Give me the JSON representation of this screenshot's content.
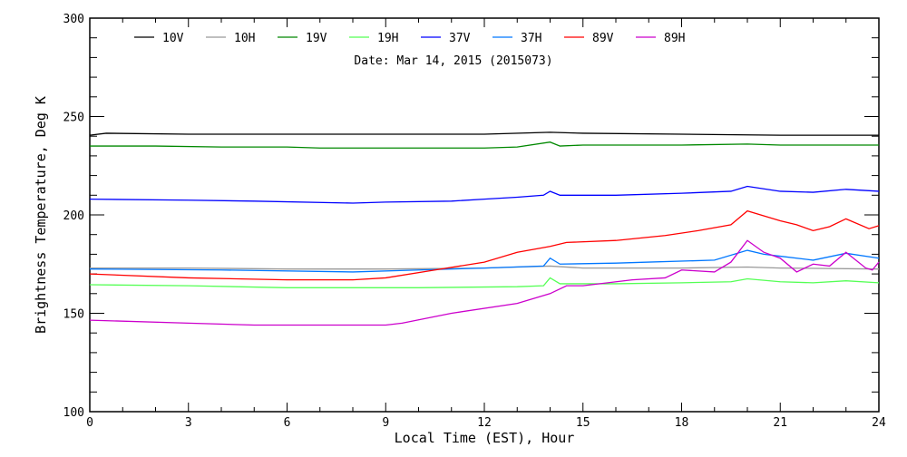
{
  "chart_data": {
    "type": "line",
    "title": "Date: Mar 14, 2015 (2015073)",
    "xlabel": "Local Time (EST), Hour",
    "ylabel": "Brightness Temperature, Deg K",
    "xlim": [
      0,
      24
    ],
    "ylim": [
      100,
      300
    ],
    "xticks": [
      0,
      3,
      6,
      9,
      12,
      15,
      18,
      21,
      24
    ],
    "yticks": [
      100,
      150,
      200,
      250,
      300
    ],
    "grid": false,
    "legend_placement": "top",
    "series": [
      {
        "name": "10V",
        "color": "#000000",
        "points": [
          [
            0,
            240.5
          ],
          [
            0.5,
            241.5
          ],
          [
            3,
            241
          ],
          [
            6,
            241
          ],
          [
            9,
            241
          ],
          [
            12,
            241
          ],
          [
            14,
            242
          ],
          [
            15,
            241.5
          ],
          [
            18,
            241
          ],
          [
            21,
            240.5
          ],
          [
            24,
            240.5
          ]
        ]
      },
      {
        "name": "10H",
        "color": "#999999",
        "points": [
          [
            0,
            173
          ],
          [
            3,
            173
          ],
          [
            6,
            172.5
          ],
          [
            9,
            172.5
          ],
          [
            12,
            173
          ],
          [
            14,
            174
          ],
          [
            15,
            173
          ],
          [
            18,
            173
          ],
          [
            20,
            173.5
          ],
          [
            21,
            173
          ],
          [
            24,
            172.5
          ]
        ]
      },
      {
        "name": "19V",
        "color": "#008800",
        "points": [
          [
            0,
            235
          ],
          [
            2,
            235
          ],
          [
            4,
            234.5
          ],
          [
            6,
            234.5
          ],
          [
            7,
            234
          ],
          [
            10,
            234
          ],
          [
            12,
            234
          ],
          [
            13,
            234.5
          ],
          [
            14,
            237
          ],
          [
            14.3,
            235
          ],
          [
            15,
            235.5
          ],
          [
            18,
            235.5
          ],
          [
            20,
            236
          ],
          [
            21,
            235.5
          ],
          [
            24,
            235.5
          ]
        ]
      },
      {
        "name": "19H",
        "color": "#55ff55",
        "points": [
          [
            0,
            164.5
          ],
          [
            3,
            164
          ],
          [
            6,
            163
          ],
          [
            10,
            163
          ],
          [
            13,
            163.5
          ],
          [
            13.8,
            164
          ],
          [
            14,
            168
          ],
          [
            14.3,
            165
          ],
          [
            16,
            165
          ],
          [
            18,
            165.5
          ],
          [
            19.5,
            166
          ],
          [
            20,
            167.5
          ],
          [
            21,
            166
          ],
          [
            22,
            165.5
          ],
          [
            23,
            166.5
          ],
          [
            24,
            165.5
          ]
        ]
      },
      {
        "name": "37V",
        "color": "#0000ff",
        "points": [
          [
            0,
            208
          ],
          [
            3,
            207.5
          ],
          [
            5,
            207
          ],
          [
            8,
            206
          ],
          [
            9,
            206.5
          ],
          [
            11,
            207
          ],
          [
            12,
            208
          ],
          [
            13,
            209
          ],
          [
            13.8,
            210
          ],
          [
            14,
            212
          ],
          [
            14.3,
            210
          ],
          [
            16,
            210
          ],
          [
            18,
            211
          ],
          [
            19.5,
            212
          ],
          [
            20,
            214.5
          ],
          [
            21,
            212
          ],
          [
            22,
            211.5
          ],
          [
            23,
            213
          ],
          [
            24,
            212
          ]
        ]
      },
      {
        "name": "37H",
        "color": "#0077ff",
        "points": [
          [
            0,
            172.5
          ],
          [
            4,
            172
          ],
          [
            8,
            171
          ],
          [
            10,
            172
          ],
          [
            12,
            173
          ],
          [
            13.8,
            174
          ],
          [
            14,
            178
          ],
          [
            14.3,
            175
          ],
          [
            16,
            175.5
          ],
          [
            17,
            176
          ],
          [
            19,
            177
          ],
          [
            20,
            182
          ],
          [
            20.5,
            180
          ],
          [
            21,
            179
          ],
          [
            22,
            177
          ],
          [
            23,
            180.5
          ],
          [
            24,
            178
          ]
        ]
      },
      {
        "name": "89V",
        "color": "#ff0000",
        "points": [
          [
            0,
            170
          ],
          [
            3,
            168
          ],
          [
            6,
            167
          ],
          [
            8,
            167
          ],
          [
            9,
            168
          ],
          [
            10.5,
            172
          ],
          [
            12,
            176
          ],
          [
            13,
            181
          ],
          [
            14,
            184
          ],
          [
            14.5,
            186
          ],
          [
            16,
            187
          ],
          [
            17.5,
            189.5
          ],
          [
            18.5,
            192
          ],
          [
            19.5,
            195
          ],
          [
            20,
            202
          ],
          [
            21,
            197
          ],
          [
            21.5,
            195
          ],
          [
            22,
            192
          ],
          [
            22.5,
            194
          ],
          [
            23,
            198
          ],
          [
            23.7,
            193
          ],
          [
            24,
            194.5
          ]
        ]
      },
      {
        "name": "89H",
        "color": "#cc00cc",
        "points": [
          [
            0,
            146.5
          ],
          [
            3,
            145
          ],
          [
            5,
            144
          ],
          [
            9,
            144
          ],
          [
            9.5,
            145
          ],
          [
            11,
            150
          ],
          [
            13,
            155
          ],
          [
            14,
            160
          ],
          [
            14.5,
            164
          ],
          [
            15,
            164
          ],
          [
            16.5,
            167
          ],
          [
            17.5,
            168
          ],
          [
            18,
            172
          ],
          [
            19,
            171
          ],
          [
            19.5,
            176
          ],
          [
            20,
            187
          ],
          [
            20.5,
            181
          ],
          [
            21,
            178
          ],
          [
            21.5,
            171
          ],
          [
            22,
            175
          ],
          [
            22.5,
            174
          ],
          [
            23,
            181
          ],
          [
            23.6,
            173
          ],
          [
            23.8,
            172
          ],
          [
            24,
            176
          ]
        ]
      }
    ]
  }
}
